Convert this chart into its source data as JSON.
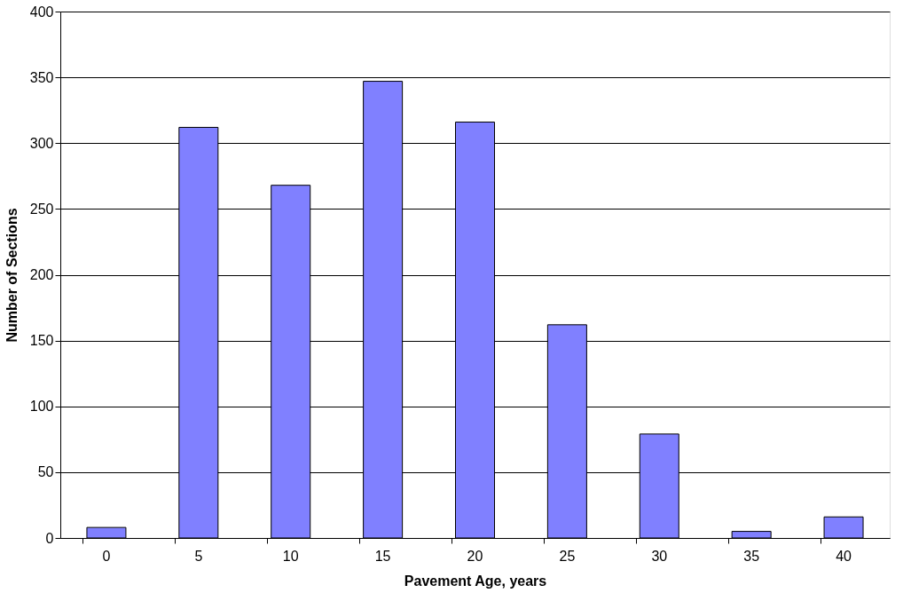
{
  "chart_data": {
    "type": "bar",
    "xlabel": "Pavement Age, years",
    "ylabel": "Number of Sections",
    "categories": [
      "0",
      "5",
      "10",
      "15",
      "20",
      "25",
      "30",
      "35",
      "40"
    ],
    "values": [
      8,
      312,
      268,
      347,
      316,
      162,
      79,
      5,
      16
    ],
    "color": "#8080ff",
    "ylim": [
      0,
      400
    ],
    "yticks": [
      0,
      50,
      100,
      150,
      200,
      250,
      300,
      350,
      400
    ],
    "grid": "y"
  }
}
